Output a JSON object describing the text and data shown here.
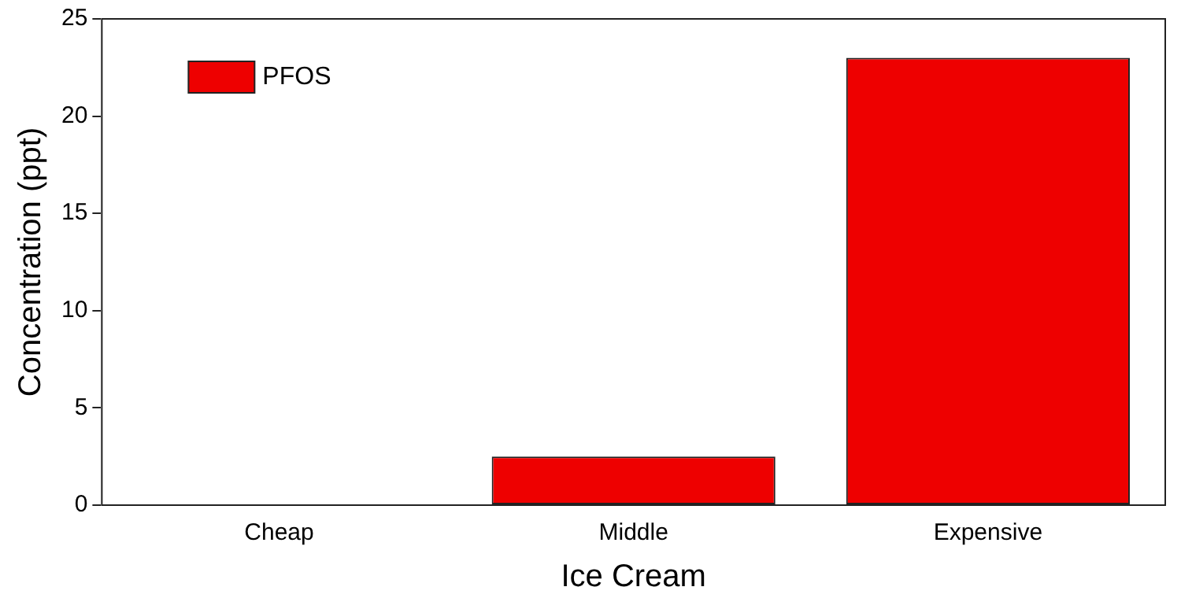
{
  "chart_data": {
    "type": "bar",
    "xlabel": "Ice Cream",
    "ylabel": "Concentration (ppt)",
    "categories": [
      "Cheap",
      "Middle",
      "Expensive"
    ],
    "series": [
      {
        "name": "PFOS",
        "color": "#ee0000",
        "values": [
          0,
          2.5,
          23
        ]
      }
    ],
    "ylim": [
      0,
      25
    ],
    "yticks": [
      0,
      5,
      10,
      15,
      20,
      25
    ],
    "grid": false,
    "legend": "top left"
  }
}
